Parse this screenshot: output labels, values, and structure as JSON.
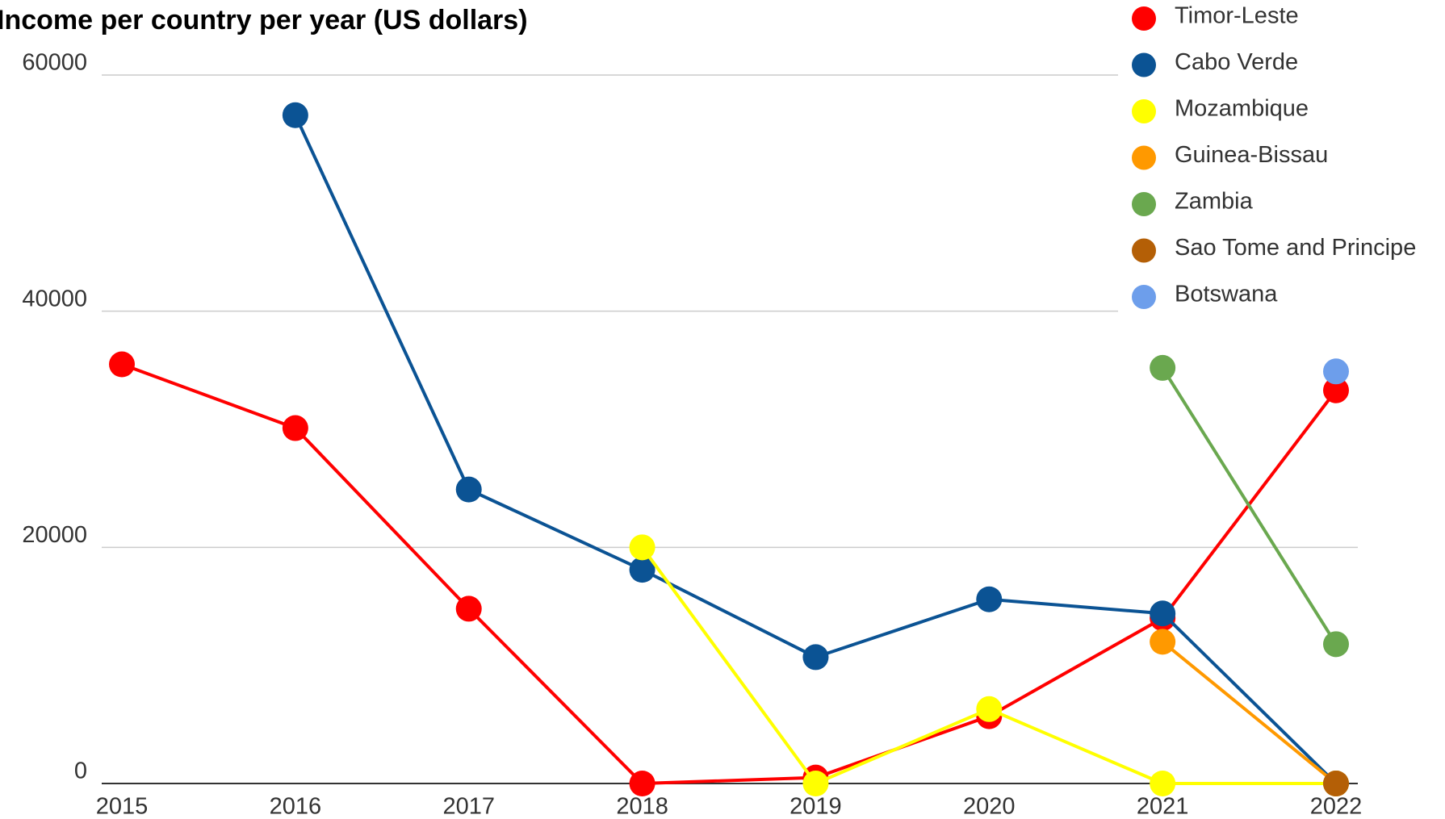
{
  "chart_data": {
    "type": "line",
    "title": "Income per country per year (US dollars)",
    "categories": [
      "2015",
      "2016",
      "2017",
      "2018",
      "2019",
      "2020",
      "2021",
      "2022"
    ],
    "ylim": [
      0,
      60000
    ],
    "yticks": [
      0,
      20000,
      40000,
      60000
    ],
    "grid": true,
    "legend": "top-right",
    "series": [
      {
        "name": "Timor-Leste",
        "color": "#ff0000",
        "values": [
          35500,
          30100,
          14800,
          0,
          500,
          5700,
          14000,
          33300
        ]
      },
      {
        "name": "Cabo Verde",
        "color": "#0b5394",
        "values": [
          null,
          56600,
          24900,
          18100,
          10700,
          15600,
          14400,
          0
        ]
      },
      {
        "name": "Mozambique",
        "color": "#ffff00",
        "values": [
          null,
          null,
          null,
          20000,
          0,
          6300,
          0,
          0
        ]
      },
      {
        "name": "Guinea-Bissau",
        "color": "#ff9900",
        "values": [
          null,
          null,
          null,
          null,
          null,
          null,
          12000,
          0
        ]
      },
      {
        "name": "Zambia",
        "color": "#6aa84f",
        "values": [
          null,
          null,
          null,
          null,
          null,
          null,
          35200,
          11800
        ]
      },
      {
        "name": "Sao Tome and Principe",
        "color": "#b45f06",
        "values": [
          null,
          null,
          null,
          null,
          null,
          null,
          null,
          0
        ]
      },
      {
        "name": "Botswana",
        "color": "#6d9eeb",
        "values": [
          null,
          null,
          null,
          null,
          null,
          null,
          null,
          34900
        ]
      }
    ]
  }
}
